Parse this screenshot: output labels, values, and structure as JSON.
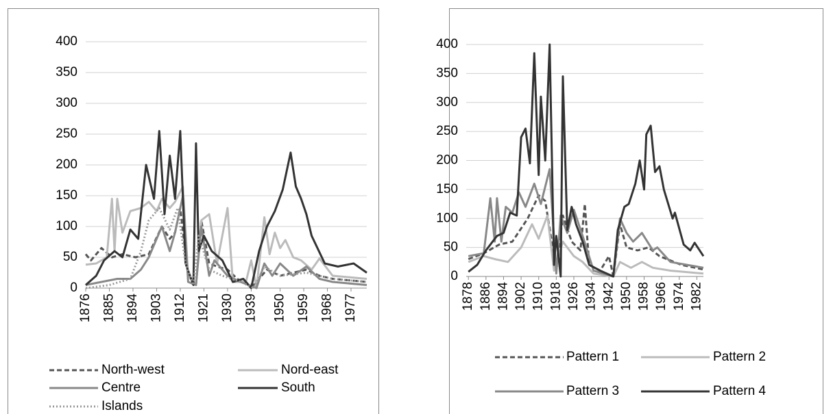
{
  "chart_data": [
    {
      "type": "line",
      "legend": "bottom",
      "grid": true,
      "xlim": [
        1876,
        1983
      ],
      "xticks": [
        1876,
        1885,
        1894,
        1903,
        1912,
        1921,
        1930,
        1939,
        1950,
        1959,
        1968,
        1977
      ],
      "ylim": [
        0,
        400
      ],
      "yticks": [
        0,
        50,
        100,
        150,
        200,
        250,
        300,
        350,
        400
      ],
      "series": [
        {
          "name": "North-west",
          "color": "#555555",
          "dash": "dashed",
          "x": [
            1876,
            1878,
            1882,
            1886,
            1890,
            1895,
            1900,
            1905,
            1908,
            1910,
            1912,
            1915,
            1918,
            1920,
            1923,
            1926,
            1930,
            1935,
            1940,
            1945,
            1950,
            1955,
            1960,
            1965,
            1970,
            1983
          ],
          "values": [
            55,
            45,
            65,
            50,
            55,
            50,
            55,
            100,
            80,
            90,
            130,
            20,
            5,
            110,
            40,
            35,
            30,
            10,
            5,
            30,
            20,
            25,
            30,
            20,
            15,
            10
          ]
        },
        {
          "name": "Nord-east",
          "color": "#bbbbbb",
          "dash": "solid",
          "x": [
            1876,
            1880,
            1884,
            1886,
            1887,
            1888,
            1890,
            1893,
            1897,
            1900,
            1903,
            1905,
            1908,
            1910,
            1913,
            1915,
            1918,
            1920,
            1923,
            1926,
            1930,
            1932,
            1937,
            1939,
            1941,
            1944,
            1946,
            1948,
            1950,
            1952,
            1955,
            1958,
            1962,
            1965,
            1970,
            1983
          ],
          "values": [
            38,
            40,
            50,
            145,
            60,
            145,
            90,
            125,
            130,
            140,
            125,
            145,
            130,
            140,
            165,
            20,
            5,
            110,
            120,
            40,
            130,
            10,
            10,
            45,
            0,
            115,
            55,
            90,
            65,
            78,
            50,
            45,
            30,
            48,
            20,
            15
          ]
        },
        {
          "name": "Centre",
          "color": "#888888",
          "dash": "solid",
          "x": [
            1876,
            1882,
            1888,
            1893,
            1897,
            1900,
            1905,
            1908,
            1910,
            1913,
            1915,
            1918,
            1920,
            1923,
            1925,
            1930,
            1935,
            1941,
            1944,
            1947,
            1950,
            1955,
            1960,
            1965,
            1970,
            1983
          ],
          "values": [
            5,
            10,
            15,
            15,
            30,
            50,
            100,
            60,
            90,
            150,
            10,
            5,
            100,
            20,
            45,
            20,
            10,
            0,
            40,
            20,
            40,
            20,
            35,
            15,
            10,
            5
          ]
        },
        {
          "name": "South",
          "color": "#333333",
          "dash": "solid",
          "x": [
            1876,
            1880,
            1883,
            1887,
            1890,
            1893,
            1896,
            1899,
            1902,
            1904,
            1906,
            1908,
            1910,
            1912,
            1914,
            1917,
            1918,
            1919,
            1921,
            1924,
            1928,
            1932,
            1936,
            1939,
            1942,
            1945,
            1948,
            1951,
            1954,
            1956,
            1958,
            1960,
            1962,
            1967,
            1972,
            1978,
            1983
          ],
          "values": [
            5,
            20,
            45,
            60,
            50,
            95,
            80,
            200,
            145,
            255,
            120,
            215,
            145,
            255,
            40,
            5,
            235,
            60,
            85,
            60,
            45,
            10,
            15,
            0,
            60,
            100,
            125,
            160,
            220,
            165,
            145,
            120,
            85,
            40,
            35,
            40,
            25
          ]
        },
        {
          "name": "Islands",
          "color": "#999999",
          "dash": "dotted",
          "x": [
            1876,
            1885,
            1893,
            1897,
            1900,
            1904,
            1908,
            1911,
            1914,
            1917,
            1919,
            1923,
            1928,
            1935,
            1940,
            1944,
            1950,
            1960,
            1970,
            1983
          ],
          "values": [
            0,
            5,
            15,
            60,
            110,
            130,
            95,
            130,
            40,
            5,
            85,
            30,
            20,
            10,
            0,
            35,
            20,
            25,
            15,
            10
          ]
        }
      ]
    },
    {
      "type": "line",
      "legend": "bottom",
      "grid": true,
      "xlim": [
        1877,
        1985
      ],
      "xticks": [
        1878,
        1886,
        1894,
        1902,
        1910,
        1918,
        1926,
        1934,
        1942,
        1950,
        1958,
        1966,
        1974,
        1982
      ],
      "ylim": [
        0,
        400
      ],
      "yticks": [
        0,
        50,
        100,
        150,
        200,
        250,
        300,
        350,
        400
      ],
      "series": [
        {
          "name": "Pattern 1",
          "color": "#555555",
          "dash": "dashed",
          "x": [
            1878,
            1885,
            1892,
            1898,
            1905,
            1910,
            1913,
            1918,
            1921,
            1925,
            1929,
            1931,
            1933,
            1938,
            1942,
            1944,
            1947,
            1950,
            1955,
            1960,
            1965,
            1975,
            1985
          ],
          "values": [
            30,
            40,
            55,
            60,
            100,
            140,
            130,
            10,
            105,
            60,
            45,
            125,
            20,
            10,
            35,
            0,
            90,
            50,
            45,
            50,
            35,
            20,
            12
          ]
        },
        {
          "name": "Pattern 2",
          "color": "#bbbbbb",
          "dash": "solid",
          "x": [
            1878,
            1885,
            1890,
            1896,
            1902,
            1907,
            1910,
            1914,
            1917,
            1921,
            1926,
            1930,
            1935,
            1944,
            1947,
            1952,
            1957,
            1962,
            1970,
            1985
          ],
          "values": [
            25,
            35,
            30,
            25,
            50,
            90,
            65,
            105,
            10,
            60,
            35,
            25,
            5,
            0,
            25,
            15,
            25,
            15,
            10,
            5
          ]
        },
        {
          "name": "Pattern 3",
          "color": "#888888",
          "dash": "solid",
          "x": [
            1878,
            1885,
            1888,
            1890,
            1891,
            1893,
            1895,
            1898,
            1901,
            1904,
            1908,
            1911,
            1915,
            1918,
            1920,
            1923,
            1926,
            1930,
            1935,
            1944,
            1947,
            1950,
            1953,
            1957,
            1962,
            1964,
            1970,
            1985
          ],
          "values": [
            35,
            40,
            135,
            60,
            135,
            60,
            120,
            110,
            145,
            120,
            160,
            125,
            185,
            5,
            105,
            75,
            115,
            70,
            10,
            0,
            100,
            75,
            60,
            75,
            45,
            50,
            25,
            15
          ]
        },
        {
          "name": "Pattern 4",
          "color": "#333333",
          "dash": "solid",
          "x": [
            1878,
            1882,
            1886,
            1891,
            1894,
            1897,
            1900,
            1902,
            1904,
            1906,
            1908,
            1910,
            1911,
            1913,
            1915,
            1917,
            1918,
            1920,
            1921,
            1923,
            1925,
            1927,
            1930,
            1933,
            1938,
            1944,
            1946,
            1949,
            1951,
            1954,
            1956,
            1958,
            1959,
            1961,
            1963,
            1965,
            1967,
            1971,
            1972,
            1976,
            1979,
            1981,
            1985
          ],
          "values": [
            8,
            20,
            45,
            70,
            75,
            110,
            105,
            240,
            255,
            195,
            385,
            175,
            310,
            200,
            400,
            20,
            70,
            0,
            345,
            80,
            120,
            90,
            60,
            20,
            10,
            0,
            80,
            120,
            125,
            160,
            200,
            150,
            245,
            260,
            180,
            190,
            150,
            100,
            110,
            55,
            45,
            58,
            35
          ]
        }
      ]
    }
  ]
}
